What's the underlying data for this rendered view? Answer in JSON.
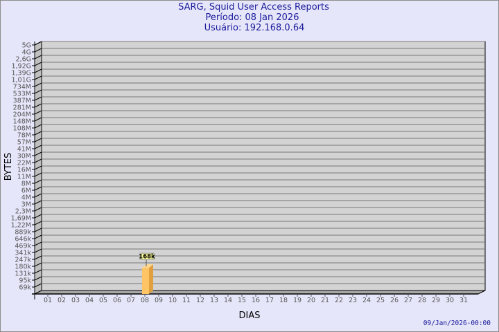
{
  "chart_data": {
    "type": "bar",
    "title": "SARG, Squid User Access Reports",
    "subtitle_lines": [
      "Período: 08 Jan 2026",
      "Usuário: 192.168.0.64"
    ],
    "xlabel": "DIAS",
    "ylabel": "BYTES",
    "y_scale": "log",
    "y_ticks": [
      "5G",
      "4G",
      "2,6G",
      "1,92G",
      "1,39G",
      "1,01G",
      "734M",
      "533M",
      "387M",
      "281M",
      "204M",
      "148M",
      "108M",
      "78M",
      "57M",
      "41M",
      "30M",
      "22M",
      "16M",
      "11M",
      "8M",
      "6M",
      "4M",
      "3M",
      "2,3M",
      "1,69M",
      "1,22M",
      "889k",
      "646k",
      "469k",
      "341k",
      "247k",
      "180k",
      "131k",
      "95k",
      "69k"
    ],
    "categories": [
      "01",
      "02",
      "03",
      "04",
      "05",
      "06",
      "07",
      "08",
      "09",
      "10",
      "11",
      "12",
      "13",
      "14",
      "15",
      "16",
      "17",
      "18",
      "19",
      "20",
      "21",
      "22",
      "23",
      "24",
      "25",
      "26",
      "27",
      "28",
      "29",
      "30",
      "31"
    ],
    "bars": [
      {
        "category": "08",
        "value": 168000,
        "label": "168k"
      }
    ],
    "grid": true,
    "colors": {
      "background": "#e6e6fa",
      "plot": "#d3d3d3",
      "bar": "#ffc464",
      "bar_side": "#e0a040",
      "title": "#1a1a9a",
      "label_box": "#ffff99"
    }
  },
  "footer": {
    "timestamp": "09/Jan/2026-00:00"
  }
}
